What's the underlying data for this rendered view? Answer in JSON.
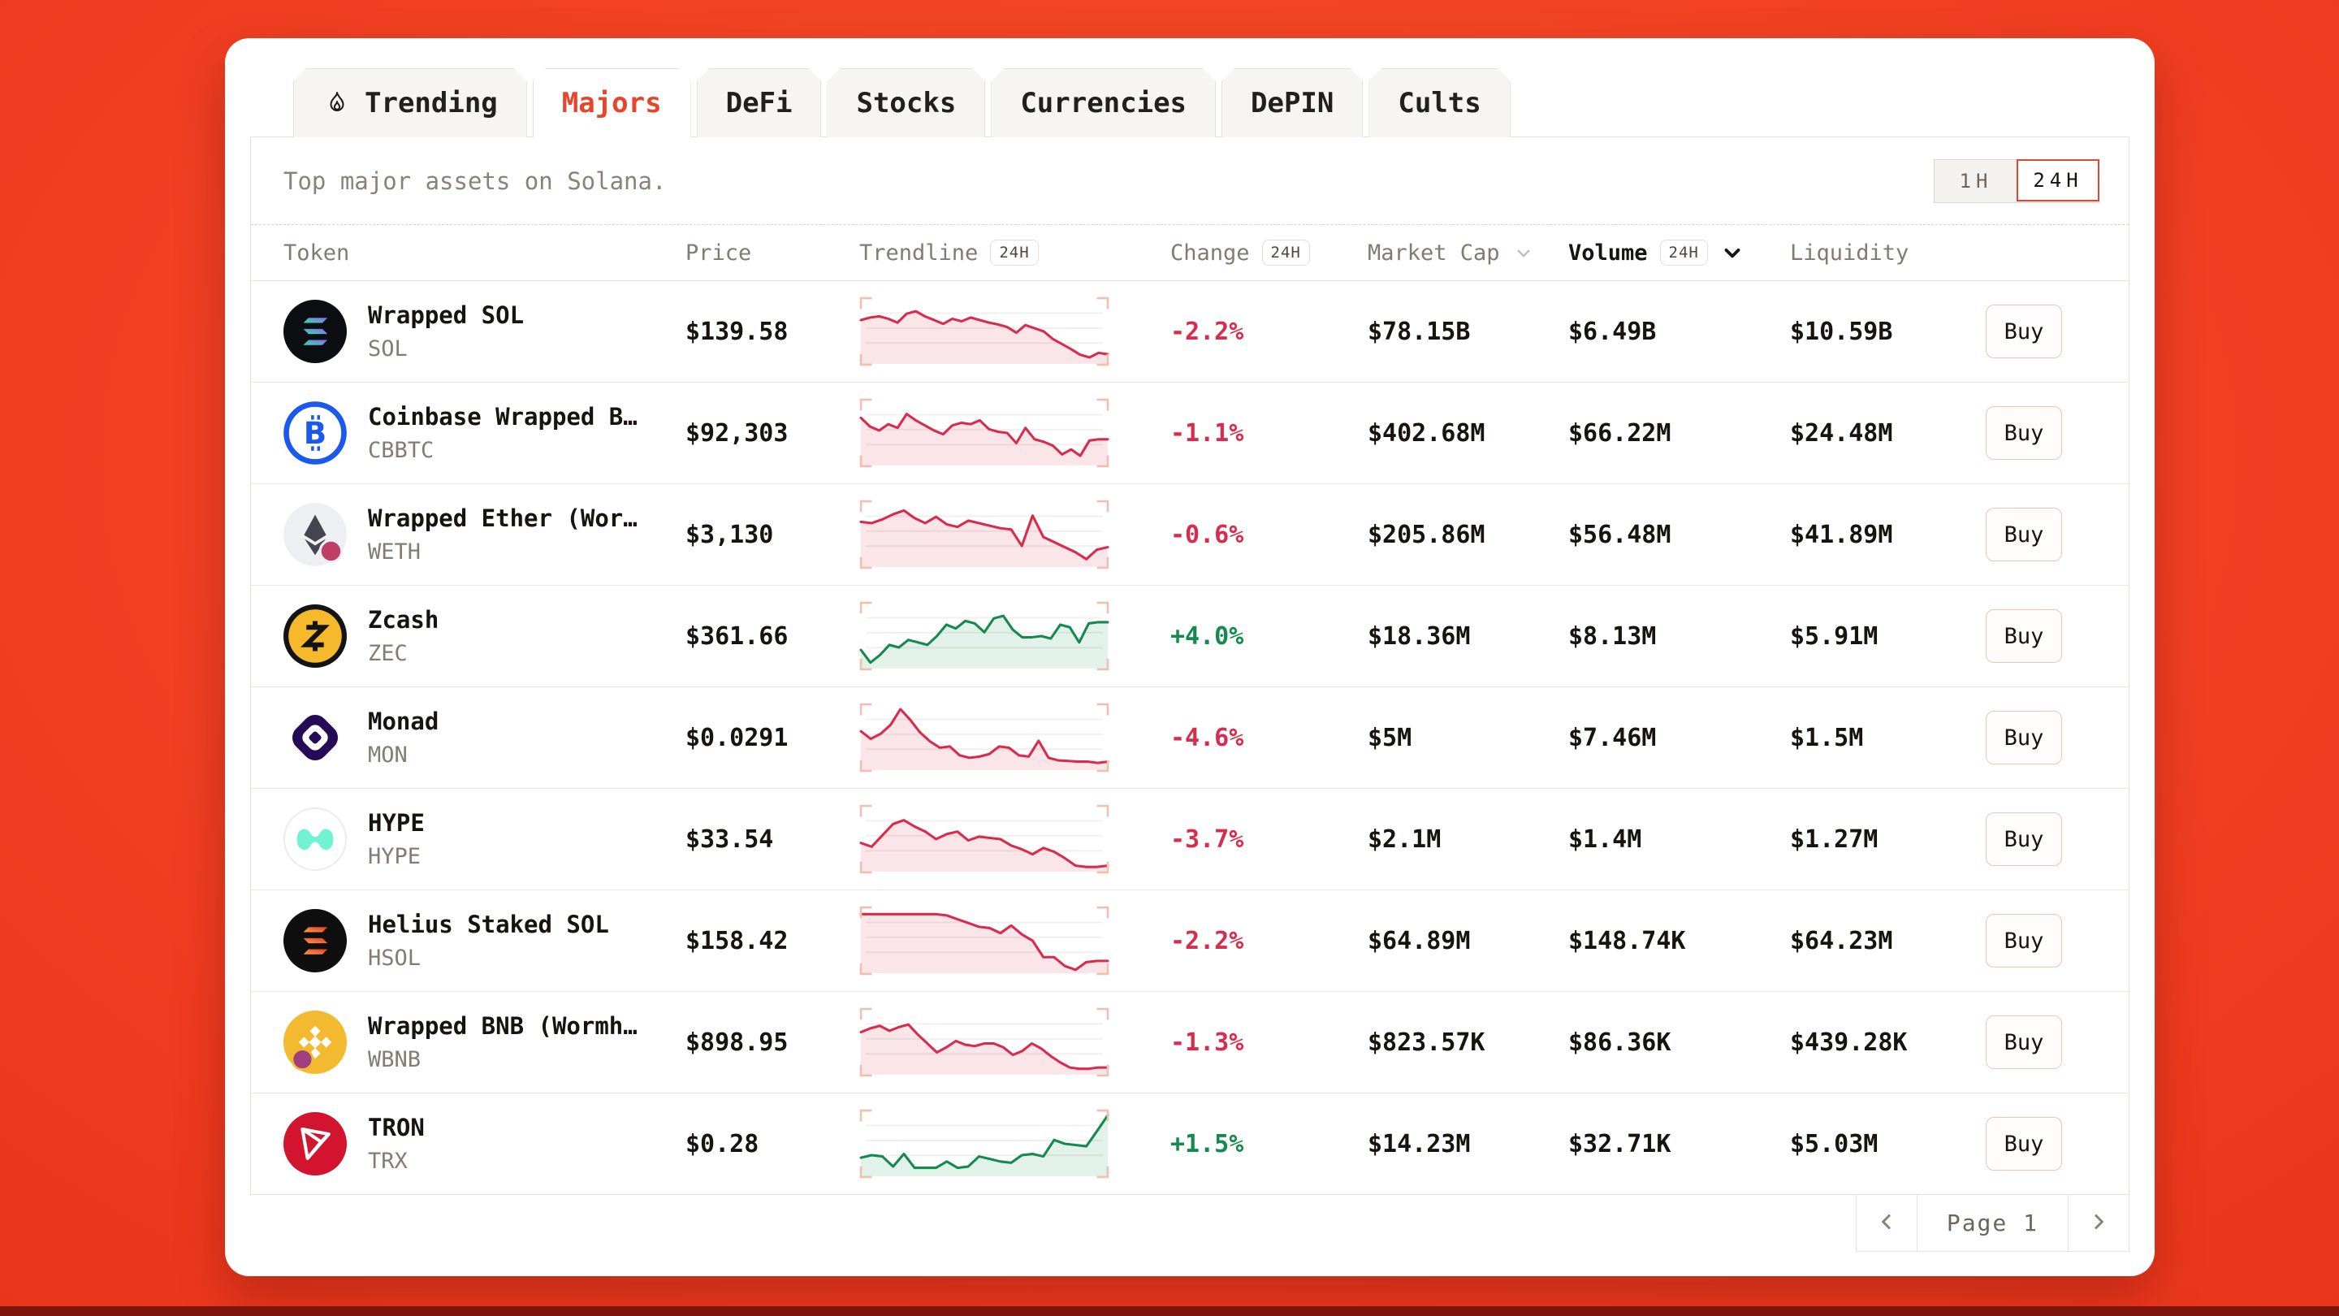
{
  "theme": {
    "page_bg": "#ef3b1f",
    "accent": "#e8442a",
    "down_color": "#d92b4b",
    "up_color": "#148a4e",
    "bracket_color": "#efc0ad",
    "gridline_color": "#f2f0ec"
  },
  "tabs": [
    {
      "label": "Trending",
      "icon": "flame",
      "active": false
    },
    {
      "label": "Majors",
      "active": true
    },
    {
      "label": "DeFi",
      "active": false
    },
    {
      "label": "Stocks",
      "active": false
    },
    {
      "label": "Currencies",
      "active": false
    },
    {
      "label": "DePIN",
      "active": false
    },
    {
      "label": "Cults",
      "active": false
    }
  ],
  "toolbar": {
    "subtitle": "Top major assets on Solana.",
    "time_toggle": {
      "options": [
        "1H",
        "24H"
      ],
      "selected": "24H"
    }
  },
  "table": {
    "headers": {
      "token": "Token",
      "price": "Price",
      "trendline": "Trendline",
      "change": "Change",
      "market_cap": "Market Cap",
      "volume": "Volume",
      "liquidity": "Liquidity",
      "badge_24h": "24H"
    },
    "buy_label": "Buy",
    "rows": [
      {
        "name": "Wrapped SOL",
        "symbol": "SOL",
        "icon": "wsol",
        "price": "$139.58",
        "change": "-2.2%",
        "trend": "down",
        "market_cap": "$78.15B",
        "volume": "$6.49B",
        "liquidity": "$10.59B",
        "spark": [
          68,
          72,
          74,
          70,
          64,
          78,
          82,
          74,
          68,
          62,
          70,
          66,
          72,
          68,
          64,
          61,
          57,
          48,
          60,
          55,
          50,
          38,
          30,
          22,
          13,
          9,
          16,
          14
        ]
      },
      {
        "name": "Coinbase Wrapped B…",
        "symbol": "CBBTC",
        "icon": "cbbtc",
        "price": "$92,303",
        "change": "-1.1%",
        "trend": "down",
        "market_cap": "$402.68M",
        "volume": "$66.22M",
        "liquidity": "$24.48M",
        "spark": [
          74,
          60,
          54,
          64,
          58,
          80,
          70,
          62,
          54,
          48,
          62,
          66,
          64,
          70,
          56,
          52,
          50,
          34,
          58,
          40,
          36,
          30,
          16,
          24,
          14,
          38,
          40,
          40
        ]
      },
      {
        "name": "Wrapped Ether (Wor…",
        "symbol": "WETH",
        "icon": "weth",
        "price": "$3,130",
        "change": "-0.6%",
        "trend": "down",
        "market_cap": "$205.86M",
        "volume": "$56.48M",
        "liquidity": "$41.89M",
        "spark": [
          70,
          68,
          74,
          82,
          88,
          76,
          68,
          78,
          66,
          62,
          72,
          68,
          64,
          60,
          58,
          32,
          80,
          46,
          38,
          30,
          22,
          11,
          26,
          30
        ]
      },
      {
        "name": "Zcash",
        "symbol": "ZEC",
        "icon": "zec",
        "price": "$361.66",
        "change": "+4.0%",
        "trend": "up",
        "market_cap": "$18.36M",
        "volume": "$8.13M",
        "liquidity": "$5.91M",
        "spark": [
          28,
          8,
          20,
          36,
          32,
          44,
          40,
          36,
          50,
          68,
          62,
          74,
          70,
          56,
          78,
          82,
          60,
          48,
          48,
          50,
          46,
          68,
          64,
          40,
          70,
          72,
          72
        ]
      },
      {
        "name": "Monad",
        "symbol": "MON",
        "icon": "mon",
        "price": "$0.0291",
        "change": "-4.6%",
        "trend": "down",
        "market_cap": "$5M",
        "volume": "$7.46M",
        "liquidity": "$1.5M",
        "spark": [
          60,
          48,
          56,
          70,
          95,
          78,
          58,
          44,
          34,
          36,
          22,
          18,
          20,
          24,
          36,
          34,
          22,
          20,
          45,
          18,
          14,
          13,
          12,
          12,
          10,
          12
        ]
      },
      {
        "name": "HYPE",
        "symbol": "HYPE",
        "icon": "hype",
        "price": "$33.54",
        "change": "-3.7%",
        "trend": "down",
        "market_cap": "$2.1M",
        "volume": "$1.4M",
        "liquidity": "$1.27M",
        "spark": [
          44,
          38,
          56,
          74,
          80,
          70,
          62,
          50,
          58,
          62,
          48,
          54,
          52,
          50,
          40,
          34,
          26,
          36,
          30,
          20,
          8,
          6,
          6,
          8
        ]
      },
      {
        "name": "Helius Staked SOL",
        "symbol": "HSOL",
        "icon": "hsol",
        "price": "$158.42",
        "change": "-2.2%",
        "trend": "down",
        "market_cap": "$64.89M",
        "volume": "$148.74K",
        "liquidity": "$64.23M",
        "spark": [
          92,
          92,
          92,
          92,
          92,
          92,
          92,
          92,
          90,
          84,
          78,
          72,
          70,
          62,
          74,
          60,
          50,
          24,
          24,
          10,
          4,
          16,
          18,
          18
        ]
      },
      {
        "name": "Wrapped BNB (Wormh…",
        "symbol": "WBNB",
        "icon": "wbnb",
        "price": "$898.95",
        "change": "-1.3%",
        "trend": "down",
        "market_cap": "$823.57K",
        "volume": "$86.36K",
        "liquidity": "$439.28K",
        "spark": [
          66,
          72,
          76,
          68,
          74,
          78,
          62,
          48,
          34,
          42,
          52,
          46,
          44,
          48,
          48,
          42,
          30,
          36,
          48,
          40,
          28,
          18,
          10,
          8,
          8,
          10,
          10
        ]
      },
      {
        "name": "TRON",
        "symbol": "TRX",
        "icon": "trx",
        "price": "$0.28",
        "change": "+1.5%",
        "trend": "up",
        "market_cap": "$14.23M",
        "volume": "$32.71K",
        "liquidity": "$5.03M",
        "spark": [
          28,
          32,
          30,
          14,
          34,
          12,
          12,
          12,
          22,
          12,
          14,
          30,
          26,
          22,
          20,
          32,
          34,
          30,
          56,
          50,
          48,
          46,
          70,
          95
        ]
      }
    ]
  },
  "pagination": {
    "prev": "chevron-left",
    "label": "Page 1",
    "next": "chevron-right"
  }
}
